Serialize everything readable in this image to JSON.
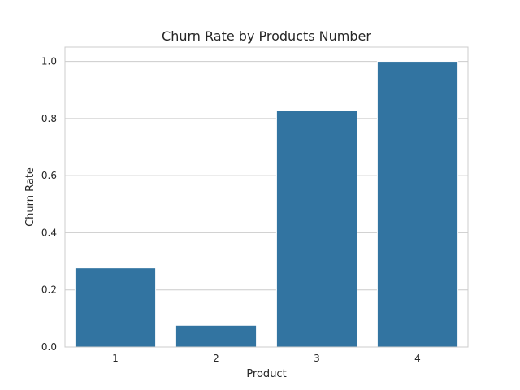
{
  "chart_data": {
    "type": "bar",
    "title": "Churn Rate by Products Number",
    "xlabel": "Product",
    "ylabel": "Churn Rate",
    "categories": [
      "1",
      "2",
      "3",
      "4"
    ],
    "values": [
      0.277,
      0.076,
      0.827,
      1.0
    ],
    "ylim": [
      0,
      1.05
    ],
    "yticks": [
      "0.0",
      "0.2",
      "0.4",
      "0.6",
      "0.8",
      "1.0"
    ],
    "grid": "y",
    "bar_color": "#3274a1",
    "grid_color": "#cccccc",
    "axes_edge_color": "#cccccc",
    "background": "#ffffff"
  }
}
